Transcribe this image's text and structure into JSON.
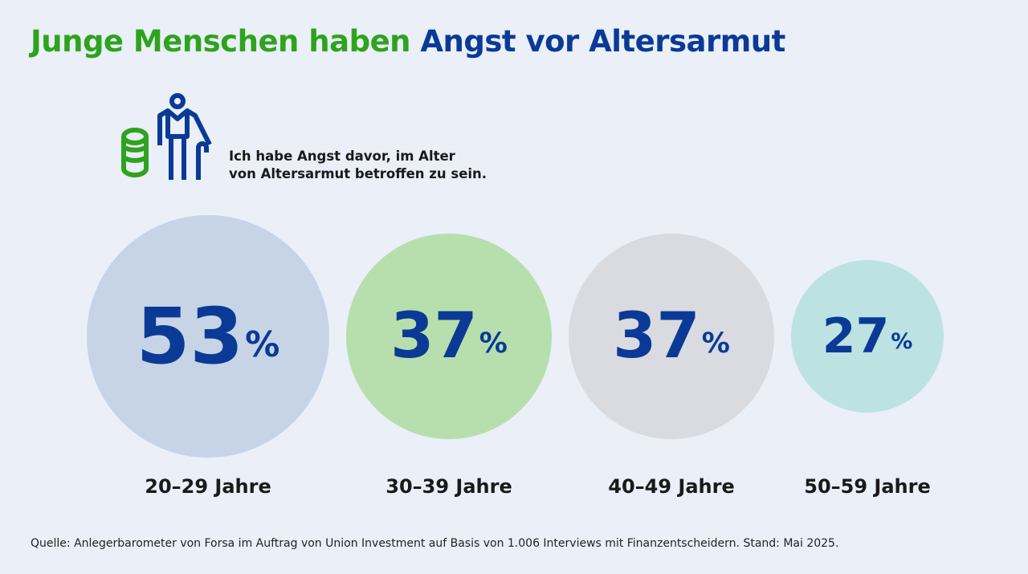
{
  "title": {
    "part1": "Junge Menschen haben",
    "part2": "Angst vor Altersarmut"
  },
  "statement": {
    "line1": "Ich habe Angst davor, im Alter",
    "line2": "von Altersarmut betroffen zu sein."
  },
  "icon": "elderly-person-with-cane-and-coins-icon",
  "chart_data": {
    "type": "bubble",
    "categories": [
      "20–29 Jahre",
      "30–39 Jahre",
      "40–49 Jahre",
      "50–59 Jahre"
    ],
    "values": [
      53,
      37,
      37,
      27
    ],
    "unit": "%",
    "colors": [
      "#c6d4e6",
      "#b6dfad",
      "#d9dbe0",
      "#bde2e2"
    ],
    "value_color": "#0b3a96"
  },
  "source": "Quelle: Anlegerbarometer von Forsa im Auftrag von Union Investment auf Basis von 1.006 Interviews mit Finanzentscheidern. Stand: Mai 2025."
}
